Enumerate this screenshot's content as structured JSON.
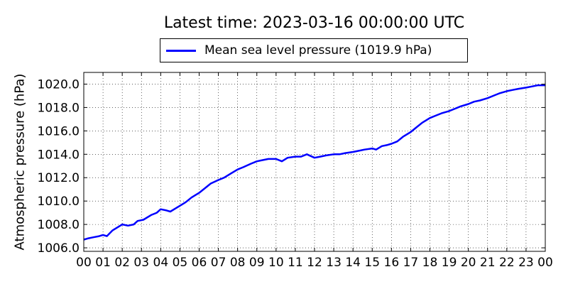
{
  "chart_data": {
    "type": "line",
    "title": "Latest time: 2023-03-16 00:00:00 UTC",
    "ylabel": "Atmospheric pressure (hPa)",
    "xlabel": "",
    "xlim": [
      0,
      24
    ],
    "ylim": [
      1005.7,
      1021.0
    ],
    "grid": true,
    "legend_position": "top-center",
    "x_ticks": [
      {
        "x": 0,
        "label": "00"
      },
      {
        "x": 1,
        "label": "01"
      },
      {
        "x": 2,
        "label": "02"
      },
      {
        "x": 3,
        "label": "03"
      },
      {
        "x": 4,
        "label": "04"
      },
      {
        "x": 5,
        "label": "05"
      },
      {
        "x": 6,
        "label": "06"
      },
      {
        "x": 7,
        "label": "07"
      },
      {
        "x": 8,
        "label": "08"
      },
      {
        "x": 9,
        "label": "09"
      },
      {
        "x": 10,
        "label": "10"
      },
      {
        "x": 11,
        "label": "11"
      },
      {
        "x": 12,
        "label": "12"
      },
      {
        "x": 13,
        "label": "13"
      },
      {
        "x": 14,
        "label": "14"
      },
      {
        "x": 15,
        "label": "15"
      },
      {
        "x": 16,
        "label": "16"
      },
      {
        "x": 17,
        "label": "17"
      },
      {
        "x": 18,
        "label": "18"
      },
      {
        "x": 19,
        "label": "19"
      },
      {
        "x": 20,
        "label": "20"
      },
      {
        "x": 21,
        "label": "21"
      },
      {
        "x": 22,
        "label": "22"
      },
      {
        "x": 23,
        "label": "23"
      },
      {
        "x": 24,
        "label": "00"
      }
    ],
    "y_ticks": [
      {
        "y": 1006,
        "label": "1006.0"
      },
      {
        "y": 1008,
        "label": "1008.0"
      },
      {
        "y": 1010,
        "label": "1010.0"
      },
      {
        "y": 1012,
        "label": "1012.0"
      },
      {
        "y": 1014,
        "label": "1014.0"
      },
      {
        "y": 1016,
        "label": "1016.0"
      },
      {
        "y": 1018,
        "label": "1018.0"
      },
      {
        "y": 1020,
        "label": "1020.0"
      }
    ],
    "series": [
      {
        "name": "Mean sea level pressure (1019.9 hPa)",
        "color": "#0000ff",
        "x": [
          0,
          0.2,
          0.5,
          0.8,
          1.0,
          1.2,
          1.5,
          1.8,
          2.0,
          2.3,
          2.6,
          2.8,
          3.1,
          3.5,
          3.8,
          4.0,
          4.3,
          4.5,
          4.8,
          5.0,
          5.3,
          5.6,
          6.0,
          6.3,
          6.6,
          7.0,
          7.3,
          7.7,
          8.0,
          8.3,
          8.7,
          9.0,
          9.3,
          9.6,
          10.0,
          10.3,
          10.6,
          11.0,
          11.3,
          11.6,
          12.0,
          12.3,
          12.6,
          13.0,
          13.3,
          13.6,
          14.0,
          14.3,
          14.6,
          15.0,
          15.2,
          15.5,
          15.8,
          16.0,
          16.3,
          16.6,
          17.0,
          17.3,
          17.6,
          18.0,
          18.3,
          18.6,
          19.0,
          19.3,
          19.6,
          20.0,
          20.3,
          20.6,
          21.0,
          21.3,
          21.6,
          22.0,
          22.3,
          22.6,
          23.0,
          23.3,
          23.6,
          24.0
        ],
        "values": [
          1006.7,
          1006.8,
          1006.9,
          1007.0,
          1007.1,
          1007.0,
          1007.5,
          1007.8,
          1008.0,
          1007.9,
          1008.0,
          1008.3,
          1008.4,
          1008.8,
          1009.0,
          1009.3,
          1009.2,
          1009.1,
          1009.4,
          1009.6,
          1009.9,
          1010.3,
          1010.7,
          1011.1,
          1011.5,
          1011.8,
          1012.0,
          1012.4,
          1012.7,
          1012.9,
          1013.2,
          1013.4,
          1013.5,
          1013.6,
          1013.6,
          1013.4,
          1013.7,
          1013.8,
          1013.8,
          1014.0,
          1013.7,
          1013.8,
          1013.9,
          1014.0,
          1014.0,
          1014.1,
          1014.2,
          1014.3,
          1014.4,
          1014.5,
          1014.4,
          1014.7,
          1014.8,
          1014.9,
          1015.1,
          1015.5,
          1015.9,
          1016.3,
          1016.7,
          1017.1,
          1017.3,
          1017.5,
          1017.7,
          1017.9,
          1018.1,
          1018.3,
          1018.5,
          1018.6,
          1018.8,
          1019.0,
          1019.2,
          1019.4,
          1019.5,
          1019.6,
          1019.7,
          1019.8,
          1019.9,
          1019.9
        ]
      }
    ]
  }
}
